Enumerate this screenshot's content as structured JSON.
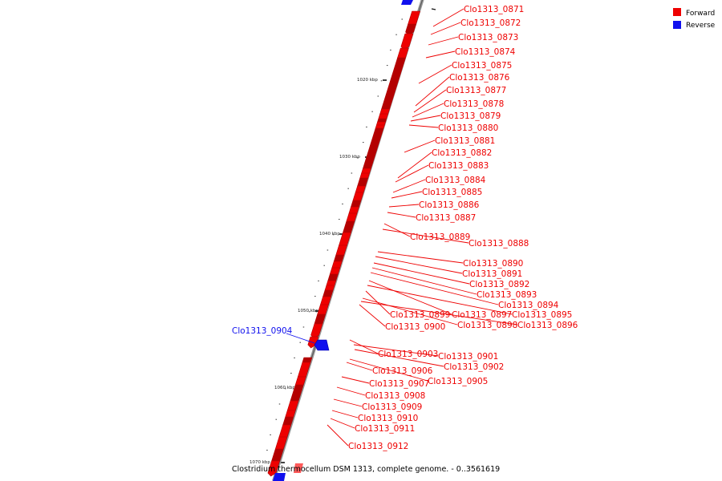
{
  "caption": "Clostridium thermocellum DSM 1313, complete genome. - 0..3561619",
  "legend": [
    {
      "label": "Forward",
      "color": "#ee0000"
    },
    {
      "label": "Reverse",
      "color": "#1010ee"
    }
  ],
  "scale": {
    "major_ticks": [
      "1020 kbp",
      "1030 kbp",
      "1040 kbp",
      "1050 kbp",
      "1060 kbp",
      "1070 kbp"
    ]
  },
  "genes": [
    {
      "id": "Clo1313_0871",
      "strand": "forward"
    },
    {
      "id": "Clo1313_0872",
      "strand": "forward"
    },
    {
      "id": "Clo1313_0873",
      "strand": "forward"
    },
    {
      "id": "Clo1313_0874",
      "strand": "forward"
    },
    {
      "id": "Clo1313_0875",
      "strand": "forward"
    },
    {
      "id": "Clo1313_0876",
      "strand": "forward"
    },
    {
      "id": "Clo1313_0877",
      "strand": "forward"
    },
    {
      "id": "Clo1313_0878",
      "strand": "forward"
    },
    {
      "id": "Clo1313_0879",
      "strand": "forward"
    },
    {
      "id": "Clo1313_0880",
      "strand": "forward"
    },
    {
      "id": "Clo1313_0881",
      "strand": "forward"
    },
    {
      "id": "Clo1313_0882",
      "strand": "forward"
    },
    {
      "id": "Clo1313_0883",
      "strand": "forward"
    },
    {
      "id": "Clo1313_0884",
      "strand": "forward"
    },
    {
      "id": "Clo1313_0885",
      "strand": "forward"
    },
    {
      "id": "Clo1313_0886",
      "strand": "forward"
    },
    {
      "id": "Clo1313_0887",
      "strand": "forward"
    },
    {
      "id": "Clo1313_0889",
      "strand": "forward"
    },
    {
      "id": "Clo1313_0888",
      "strand": "forward"
    },
    {
      "id": "Clo1313_0890",
      "strand": "forward"
    },
    {
      "id": "Clo1313_0891",
      "strand": "forward"
    },
    {
      "id": "Clo1313_0892",
      "strand": "forward"
    },
    {
      "id": "Clo1313_0893",
      "strand": "forward"
    },
    {
      "id": "Clo1313_0894",
      "strand": "forward"
    },
    {
      "id": "Clo1313_0899",
      "strand": "forward"
    },
    {
      "id": "Clo1313_0897",
      "strand": "forward"
    },
    {
      "id": "Clo1313_0895",
      "strand": "forward"
    },
    {
      "id": "Clo1313_0900",
      "strand": "forward"
    },
    {
      "id": "Clo1313_0898",
      "strand": "forward"
    },
    {
      "id": "Clo1313_0896",
      "strand": "forward"
    },
    {
      "id": "Clo1313_0904",
      "strand": "reverse"
    },
    {
      "id": "Clo1313_0903",
      "strand": "forward"
    },
    {
      "id": "Clo1313_0901",
      "strand": "forward"
    },
    {
      "id": "Clo1313_0902",
      "strand": "forward"
    },
    {
      "id": "Clo1313_0906",
      "strand": "forward"
    },
    {
      "id": "Clo1313_0905",
      "strand": "forward"
    },
    {
      "id": "Clo1313_0907",
      "strand": "forward"
    },
    {
      "id": "Clo1313_0908",
      "strand": "forward"
    },
    {
      "id": "Clo1313_0909",
      "strand": "forward"
    },
    {
      "id": "Clo1313_0910",
      "strand": "forward"
    },
    {
      "id": "Clo1313_0911",
      "strand": "forward"
    },
    {
      "id": "Clo1313_0912",
      "strand": "forward"
    }
  ]
}
